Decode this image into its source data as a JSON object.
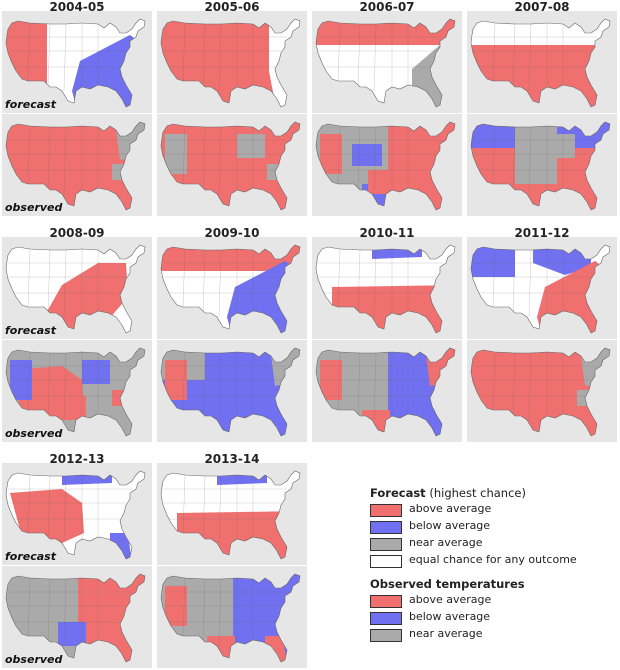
{
  "seasons": [
    {
      "label": "2004-05",
      "forecast_pattern": "west-above-southeast-below",
      "observed_pattern": "mostly-above"
    },
    {
      "label": "2005-06",
      "forecast_pattern": "most-above-east-coast-equal",
      "observed_pattern": "mostly-above-some-near"
    },
    {
      "label": "2006-07",
      "forecast_pattern": "north-above-southeast-near",
      "observed_pattern": "mixed-east-above"
    },
    {
      "label": "2007-08",
      "forecast_pattern": "most-above-north-equal",
      "observed_pattern": "north-below-south-above"
    },
    {
      "label": "2008-09",
      "forecast_pattern": "central-band-above",
      "observed_pattern": "mixed-near-below"
    },
    {
      "label": "2009-10",
      "forecast_pattern": "north-above-southeast-below",
      "observed_pattern": "mostly-below"
    },
    {
      "label": "2010-11",
      "forecast_pattern": "south-above-north-below",
      "observed_pattern": "mixed-below-east"
    },
    {
      "label": "2011-12",
      "forecast_pattern": "northwest-below-south-above",
      "observed_pattern": "mostly-above"
    },
    {
      "label": "2012-13",
      "forecast_pattern": "southwest-above-florida-below",
      "observed_pattern": "mixed-west-below-east-above"
    },
    {
      "label": "2013-14",
      "forecast_pattern": "south-above-north-below",
      "observed_pattern": "mostly-below-west-above"
    }
  ],
  "row_labels": {
    "forecast": "forecast",
    "observed": "observed"
  },
  "legend": {
    "forecast_heading": "Forecast",
    "forecast_note": "(highest chance)",
    "forecast_items": [
      {
        "key": "above",
        "label": "above average"
      },
      {
        "key": "below",
        "label": "below average"
      },
      {
        "key": "near",
        "label": "near average"
      },
      {
        "key": "equal",
        "label": "equal chance for any outcome"
      }
    ],
    "observed_heading": "Observed temperatures",
    "observed_items": [
      {
        "key": "above",
        "label": "above average"
      },
      {
        "key": "below",
        "label": "below average"
      },
      {
        "key": "near",
        "label": "near average"
      }
    ]
  },
  "colors": {
    "above": "#f07070",
    "below": "#7070f0",
    "near": "#aaaaaa",
    "equal": "#ffffff",
    "panel_bg": "#e6e6e6",
    "border": "#666666"
  }
}
